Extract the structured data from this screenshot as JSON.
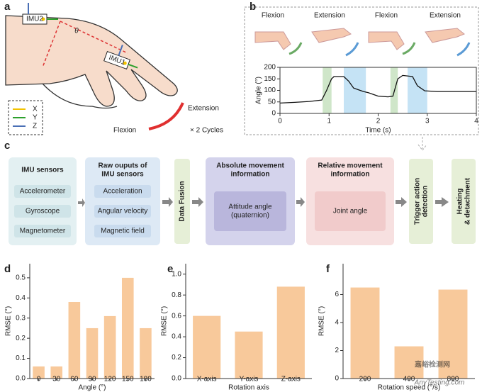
{
  "panel_labels": [
    "a",
    "b",
    "c",
    "d",
    "e",
    "f"
  ],
  "panel_a": {
    "imu2": "IMU2",
    "imu1": "IMU1",
    "angle": "θ",
    "axes": [
      "X",
      "Y",
      "Z"
    ],
    "extension": "Extension",
    "flexion": "Flexion",
    "cycles": "× 2 Cycles"
  },
  "panel_b": {
    "motions": [
      "Flexion",
      "Extension",
      "Flexion",
      "Extension"
    ]
  },
  "panel_c": {
    "sensors": {
      "title": [
        "IMU sensors"
      ],
      "items": [
        "Accelerometer",
        "Gyroscope",
        "Magnetometer"
      ]
    },
    "raw": {
      "title": [
        "Raw ouputs of",
        "IMU sensors"
      ],
      "items": [
        "Acceleration",
        "Angular velocity",
        "Magnetic field"
      ]
    },
    "fusion": "Data Fusion",
    "absolute": {
      "title": [
        "Absolute movement",
        "information"
      ],
      "items": [
        "Attitude angle",
        "(quaternion)"
      ]
    },
    "relative": {
      "title": [
        "Relative movement",
        "information"
      ],
      "items": [
        "Joint angle"
      ]
    },
    "trigger": [
      "Trigger action",
      "detection"
    ],
    "heating": [
      "Heating",
      "& detachment"
    ]
  },
  "watermark": [
    "嘉峪检测网",
    "AnyTesting.com"
  ],
  "chart_data": [
    {
      "type": "line",
      "xlabel": "Time (s)",
      "ylabel": "Angle (°)",
      "x": [
        0,
        0.3,
        0.6,
        0.85,
        0.95,
        1.05,
        1.1,
        1.3,
        1.4,
        1.5,
        1.7,
        1.8,
        2.0,
        2.2,
        2.3,
        2.4,
        2.5,
        2.7,
        2.8,
        2.95,
        3.2,
        4
      ],
      "values": [
        45,
        48,
        52,
        58,
        100,
        150,
        160,
        160,
        140,
        110,
        95,
        90,
        75,
        72,
        75,
        150,
        165,
        160,
        120,
        98,
        95,
        95
      ],
      "color": "#111111",
      "spans": [
        {
          "start": 0.87,
          "end": 1.05,
          "color": "#cfe6c9"
        },
        {
          "start": 1.3,
          "end": 1.75,
          "color": "#c5e3f5"
        },
        {
          "start": 2.25,
          "end": 2.4,
          "color": "#cfe6c9"
        },
        {
          "start": 2.6,
          "end": 3.0,
          "color": "#c5e3f5"
        }
      ],
      "xlim": [
        0,
        4
      ],
      "xticks": [
        0,
        1,
        2,
        3,
        4
      ],
      "ylim": [
        0,
        200
      ],
      "yticks": [
        0,
        50,
        100,
        150,
        200
      ]
    },
    {
      "type": "bar",
      "xlabel": "Angle (°)",
      "ylabel": "RMSE (°)",
      "categories": [
        "0",
        "30",
        "60",
        "90",
        "120",
        "150",
        "180"
      ],
      "values": [
        0.06,
        0.06,
        0.38,
        0.25,
        0.31,
        0.5,
        0.25
      ],
      "color": "#f8c99b",
      "ylim": [
        0,
        0.57
      ],
      "yticks": [
        {
          "value": 0,
          "label": "0.0"
        },
        0.1,
        0.2,
        0.3,
        0.4,
        0.5
      ]
    },
    {
      "type": "bar",
      "xlabel": "Rotation axis",
      "ylabel": "RMSE (°)",
      "categories": [
        "X-axis",
        "Y-axis",
        "Z-axis"
      ],
      "values": [
        0.6,
        0.45,
        0.88
      ],
      "color": "#f8c99b",
      "ylim": [
        0,
        1.1
      ],
      "yticks": [
        {
          "value": 0,
          "label": "0.0"
        },
        0.2,
        0.4,
        0.6,
        0.8,
        {
          "value": 1,
          "label": "1.0"
        }
      ]
    },
    {
      "type": "bar",
      "xlabel": "Rotation speed (°/s)",
      "ylabel": "RMSE (°)",
      "categories": [
        "200",
        "400",
        "800"
      ],
      "values": [
        6.5,
        2.3,
        6.35
      ],
      "color": "#f8c99b",
      "ylim": [
        0,
        8.2
      ],
      "yticks": [
        0,
        2,
        4,
        6
      ]
    }
  ]
}
